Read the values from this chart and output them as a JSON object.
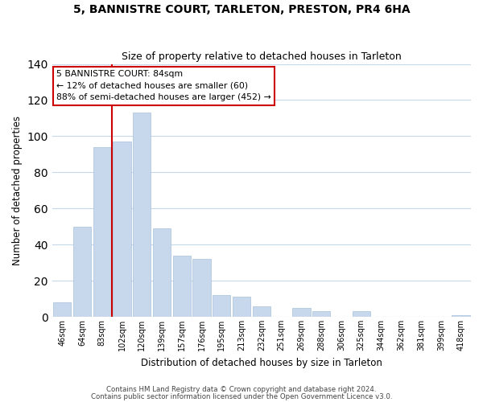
{
  "title": "5, BANNISTRE COURT, TARLETON, PRESTON, PR4 6HA",
  "subtitle": "Size of property relative to detached houses in Tarleton",
  "xlabel": "Distribution of detached houses by size in Tarleton",
  "ylabel": "Number of detached properties",
  "bar_labels": [
    "46sqm",
    "64sqm",
    "83sqm",
    "102sqm",
    "120sqm",
    "139sqm",
    "157sqm",
    "176sqm",
    "195sqm",
    "213sqm",
    "232sqm",
    "251sqm",
    "269sqm",
    "288sqm",
    "306sqm",
    "325sqm",
    "344sqm",
    "362sqm",
    "381sqm",
    "399sqm",
    "418sqm"
  ],
  "bar_values": [
    8,
    50,
    94,
    97,
    113,
    49,
    34,
    32,
    12,
    11,
    6,
    0,
    5,
    3,
    0,
    3,
    0,
    0,
    0,
    0,
    1
  ],
  "bar_color": "#c8d8ec",
  "bar_edge_color": "#a8c0dc",
  "vline_color": "#cc0000",
  "vline_x": 2.5,
  "ylim": [
    0,
    140
  ],
  "yticks": [
    0,
    20,
    40,
    60,
    80,
    100,
    120,
    140
  ],
  "annotation_title": "5 BANNISTRE COURT: 84sqm",
  "annotation_line1": "← 12% of detached houses are smaller (60)",
  "annotation_line2": "88% of semi-detached houses are larger (452) →",
  "annotation_box_color": "#ffffff",
  "annotation_border_color": "#cc0000",
  "footer1": "Contains HM Land Registry data © Crown copyright and database right 2024.",
  "footer2": "Contains public sector information licensed under the Open Government Licence v3.0.",
  "background_color": "#ffffff",
  "grid_color": "#c8d8ec"
}
